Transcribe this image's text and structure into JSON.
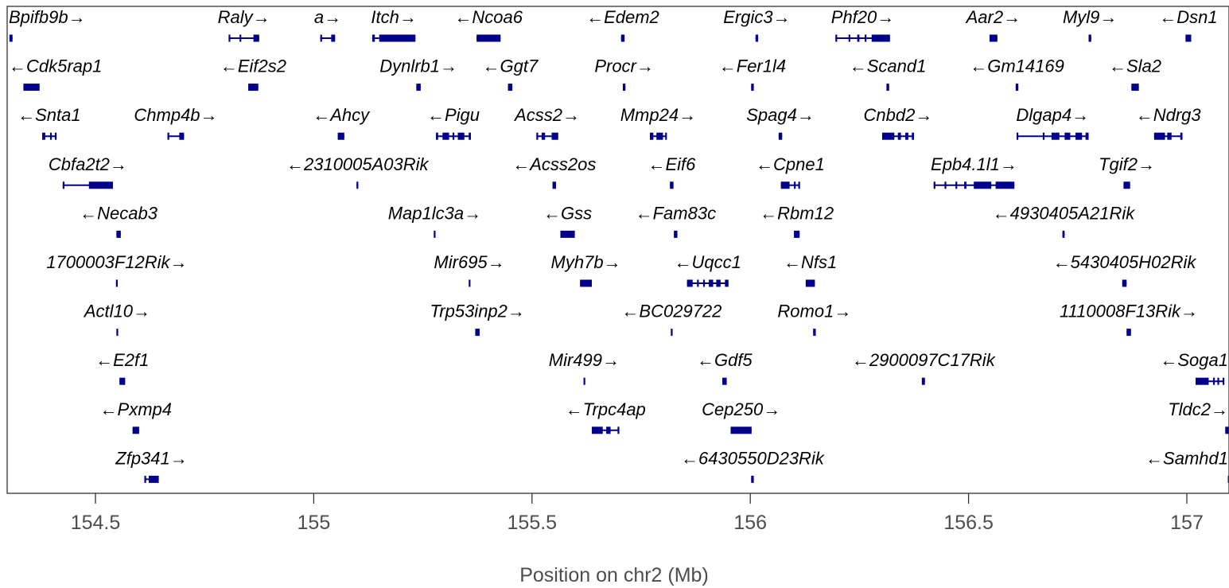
{
  "chart_data": {
    "type": "gene-track",
    "xlabel": "Position on chr2 (Mb)",
    "xlim": [
      154.3,
      157.1
    ],
    "xticks": [
      154.5,
      155,
      155.5,
      156,
      156.5,
      157
    ],
    "xtick_labels": [
      "154.5",
      "155",
      "155.5",
      "156",
      "156.5",
      "157"
    ],
    "gene_color": "#00008b",
    "genes": [
      {
        "name": "Bpifb9b",
        "strand": "+",
        "row": 0,
        "start": 154.303,
        "end": 154.31,
        "exons": [
          [
            154.303,
            154.31
          ]
        ]
      },
      {
        "name": "Raly",
        "strand": "+",
        "row": 0,
        "start": 154.805,
        "end": 154.875,
        "exons": [
          [
            154.805,
            154.808
          ],
          [
            154.83,
            154.833
          ],
          [
            154.862,
            154.875
          ]
        ]
      },
      {
        "name": "a",
        "strand": "+",
        "row": 0,
        "start": 155.015,
        "end": 155.049,
        "exons": [
          [
            155.015,
            155.018
          ],
          [
            155.04,
            155.049
          ]
        ]
      },
      {
        "name": "Itch",
        "strand": "+",
        "row": 0,
        "start": 155.134,
        "end": 155.233,
        "exons": [
          [
            155.134,
            155.14
          ],
          [
            155.15,
            155.233
          ]
        ]
      },
      {
        "name": "Ncoa6",
        "strand": "-",
        "row": 0,
        "start": 155.373,
        "end": 155.428,
        "exons": [
          [
            155.373,
            155.428
          ]
        ]
      },
      {
        "name": "Edem2",
        "strand": "-",
        "row": 0,
        "start": 155.704,
        "end": 155.712,
        "exons": [
          [
            155.704,
            155.712
          ]
        ]
      },
      {
        "name": "Ergic3",
        "strand": "+",
        "row": 0,
        "start": 156.012,
        "end": 156.018,
        "exons": [
          [
            156.012,
            156.018
          ]
        ]
      },
      {
        "name": "Phf20",
        "strand": "+",
        "row": 0,
        "start": 156.195,
        "end": 156.32,
        "exons": [
          [
            156.195,
            156.198
          ],
          [
            156.225,
            156.228
          ],
          [
            156.245,
            156.25
          ],
          [
            156.262,
            156.265
          ],
          [
            156.278,
            156.32
          ]
        ]
      },
      {
        "name": "Aar2",
        "strand": "+",
        "row": 0,
        "start": 156.548,
        "end": 156.566,
        "exons": [
          [
            156.548,
            156.566
          ]
        ]
      },
      {
        "name": "Myl9",
        "strand": "+",
        "row": 0,
        "start": 156.775,
        "end": 156.781,
        "exons": [
          [
            156.775,
            156.781
          ]
        ]
      },
      {
        "name": "Dsn1",
        "strand": "-",
        "row": 0,
        "start": 156.997,
        "end": 157.01,
        "exons": [
          [
            156.997,
            157.01
          ]
        ]
      },
      {
        "name": "Cdk5rap1",
        "strand": "-",
        "row": 1,
        "start": 154.335,
        "end": 154.372,
        "exons": [
          [
            154.335,
            154.372
          ]
        ]
      },
      {
        "name": "Eif2s2",
        "strand": "-",
        "row": 1,
        "start": 154.85,
        "end": 154.873,
        "exons": [
          [
            154.85,
            154.873
          ]
        ]
      },
      {
        "name": "Dynlrb1",
        "strand": "+",
        "row": 1,
        "start": 155.235,
        "end": 155.245,
        "exons": [
          [
            155.235,
            155.245
          ]
        ]
      },
      {
        "name": "Ggt7",
        "strand": "-",
        "row": 1,
        "start": 155.445,
        "end": 155.455,
        "exons": [
          [
            155.445,
            155.455
          ]
        ]
      },
      {
        "name": "Procr",
        "strand": "+",
        "row": 1,
        "start": 155.708,
        "end": 155.714,
        "exons": [
          [
            155.708,
            155.714
          ]
        ]
      },
      {
        "name": "Fer1l4",
        "strand": "-",
        "row": 1,
        "start": 156.002,
        "end": 156.008,
        "exons": [
          [
            156.002,
            156.008
          ]
        ]
      },
      {
        "name": "Scand1",
        "strand": "-",
        "row": 1,
        "start": 156.312,
        "end": 156.318,
        "exons": [
          [
            156.312,
            156.318
          ]
        ]
      },
      {
        "name": "Gm14169",
        "strand": "-",
        "row": 1,
        "start": 156.608,
        "end": 156.614,
        "exons": [
          [
            156.608,
            156.614
          ]
        ]
      },
      {
        "name": "Sla2",
        "strand": "-",
        "row": 1,
        "start": 156.873,
        "end": 156.89,
        "exons": [
          [
            156.873,
            156.89
          ]
        ]
      },
      {
        "name": "Snta1",
        "strand": "-",
        "row": 2,
        "start": 154.378,
        "end": 154.41,
        "exons": [
          [
            154.378,
            154.385
          ],
          [
            154.396,
            154.399
          ],
          [
            154.407,
            154.41
          ]
        ]
      },
      {
        "name": "Chmp4b",
        "strand": "+",
        "row": 2,
        "start": 154.665,
        "end": 154.703,
        "exons": [
          [
            154.665,
            154.668
          ],
          [
            154.692,
            154.703
          ]
        ]
      },
      {
        "name": "Ahcy",
        "strand": "-",
        "row": 2,
        "start": 155.055,
        "end": 155.07,
        "exons": [
          [
            155.055,
            155.07
          ]
        ]
      },
      {
        "name": "Pigu",
        "strand": "-",
        "row": 2,
        "start": 155.28,
        "end": 155.36,
        "exons": [
          [
            155.28,
            155.285
          ],
          [
            155.295,
            155.31
          ],
          [
            155.318,
            155.322
          ],
          [
            155.33,
            155.345
          ],
          [
            155.355,
            155.36
          ]
        ]
      },
      {
        "name": "Acss2",
        "strand": "+",
        "row": 2,
        "start": 155.51,
        "end": 155.56,
        "exons": [
          [
            155.51,
            155.514
          ],
          [
            155.522,
            155.53
          ],
          [
            155.545,
            155.56
          ]
        ]
      },
      {
        "name": "Mmp24",
        "strand": "+",
        "row": 2,
        "start": 155.77,
        "end": 155.808,
        "exons": [
          [
            155.77,
            155.778
          ],
          [
            155.785,
            155.8
          ],
          [
            155.805,
            155.808
          ]
        ]
      },
      {
        "name": "Spag4",
        "strand": "+",
        "row": 2,
        "start": 156.065,
        "end": 156.073,
        "exons": [
          [
            156.065,
            156.073
          ]
        ]
      },
      {
        "name": "Cnbd2",
        "strand": "+",
        "row": 2,
        "start": 156.302,
        "end": 156.375,
        "exons": [
          [
            156.302,
            156.33
          ],
          [
            156.338,
            156.345
          ],
          [
            156.355,
            156.362
          ],
          [
            156.37,
            156.375
          ]
        ]
      },
      {
        "name": "Dlgap4",
        "strand": "+",
        "row": 2,
        "start": 156.61,
        "end": 156.775,
        "exons": [
          [
            156.61,
            156.613
          ],
          [
            156.67,
            156.673
          ],
          [
            156.69,
            156.708
          ],
          [
            156.72,
            156.733
          ],
          [
            156.745,
            156.76
          ],
          [
            156.768,
            156.775
          ]
        ]
      },
      {
        "name": "Ndrg3",
        "strand": "-",
        "row": 2,
        "start": 156.925,
        "end": 156.99,
        "exons": [
          [
            156.925,
            156.95
          ],
          [
            156.955,
            156.965
          ],
          [
            156.985,
            156.99
          ]
        ]
      },
      {
        "name": "Cbfa2t2",
        "strand": "+",
        "row": 3,
        "start": 154.425,
        "end": 154.54,
        "exons": [
          [
            154.425,
            154.428
          ],
          [
            154.485,
            154.54
          ]
        ]
      },
      {
        "name": "2310005A03Rik",
        "strand": "-",
        "row": 3,
        "start": 155.098,
        "end": 155.102,
        "exons": [
          [
            155.098,
            155.102
          ]
        ]
      },
      {
        "name": "Acss2os",
        "strand": "-",
        "row": 3,
        "start": 155.547,
        "end": 155.555,
        "exons": [
          [
            155.547,
            155.555
          ]
        ]
      },
      {
        "name": "Eif6",
        "strand": "-",
        "row": 3,
        "start": 155.816,
        "end": 155.824,
        "exons": [
          [
            155.816,
            155.824
          ]
        ]
      },
      {
        "name": "Cpne1",
        "strand": "-",
        "row": 3,
        "start": 156.07,
        "end": 156.113,
        "exons": [
          [
            156.07,
            156.09
          ],
          [
            156.1,
            156.103
          ],
          [
            156.11,
            156.113
          ]
        ]
      },
      {
        "name": "Epb4.1l1",
        "strand": "+",
        "row": 3,
        "start": 156.42,
        "end": 156.605,
        "exons": [
          [
            156.42,
            156.423
          ],
          [
            156.445,
            156.448
          ],
          [
            156.47,
            156.473
          ],
          [
            156.49,
            156.495
          ],
          [
            156.512,
            156.552
          ],
          [
            156.562,
            156.605
          ]
        ]
      },
      {
        "name": "Tgif2",
        "strand": "+",
        "row": 3,
        "start": 156.855,
        "end": 156.87,
        "exons": [
          [
            156.855,
            156.87
          ]
        ]
      },
      {
        "name": "Necab3",
        "strand": "-",
        "row": 4,
        "start": 154.548,
        "end": 154.558,
        "exons": [
          [
            154.548,
            154.558
          ]
        ]
      },
      {
        "name": "Map1lc3a",
        "strand": "+",
        "row": 4,
        "start": 155.275,
        "end": 155.279,
        "exons": [
          [
            155.275,
            155.279
          ]
        ]
      },
      {
        "name": "Gss",
        "strand": "-",
        "row": 4,
        "start": 155.565,
        "end": 155.598,
        "exons": [
          [
            155.565,
            155.598
          ]
        ]
      },
      {
        "name": "Fam83c",
        "strand": "-",
        "row": 4,
        "start": 155.825,
        "end": 155.833,
        "exons": [
          [
            155.825,
            155.833
          ]
        ]
      },
      {
        "name": "Rbm12",
        "strand": "-",
        "row": 4,
        "start": 156.1,
        "end": 156.113,
        "exons": [
          [
            156.1,
            156.113
          ]
        ]
      },
      {
        "name": "4930405A21Rik",
        "strand": "-",
        "row": 4,
        "start": 156.715,
        "end": 156.72,
        "exons": [
          [
            156.715,
            156.72
          ]
        ]
      },
      {
        "name": "1700003F12Rik",
        "strand": "+",
        "row": 5,
        "start": 154.547,
        "end": 154.551,
        "exons": [
          [
            154.547,
            154.551
          ]
        ]
      },
      {
        "name": "Mir695",
        "strand": "+",
        "row": 5,
        "start": 155.355,
        "end": 155.358,
        "exons": [
          [
            155.355,
            155.358
          ]
        ]
      },
      {
        "name": "Myh7b",
        "strand": "+",
        "row": 5,
        "start": 155.61,
        "end": 155.637,
        "exons": [
          [
            155.61,
            155.637
          ]
        ]
      },
      {
        "name": "Uqcc1",
        "strand": "-",
        "row": 5,
        "start": 155.855,
        "end": 155.95,
        "exons": [
          [
            155.855,
            155.868
          ],
          [
            155.878,
            155.881
          ],
          [
            155.892,
            155.895
          ],
          [
            155.905,
            155.915
          ],
          [
            155.922,
            155.932
          ],
          [
            155.942,
            155.95
          ]
        ]
      },
      {
        "name": "Nfs1",
        "strand": "-",
        "row": 5,
        "start": 156.127,
        "end": 156.148,
        "exons": [
          [
            156.127,
            156.148
          ]
        ]
      },
      {
        "name": "5430405H02Rik",
        "strand": "-",
        "row": 5,
        "start": 156.852,
        "end": 156.862,
        "exons": [
          [
            156.852,
            156.862
          ]
        ]
      },
      {
        "name": "Actl10",
        "strand": "+",
        "row": 6,
        "start": 154.548,
        "end": 154.552,
        "exons": [
          [
            154.548,
            154.552
          ]
        ]
      },
      {
        "name": "Trp53inp2",
        "strand": "+",
        "row": 6,
        "start": 155.37,
        "end": 155.38,
        "exons": [
          [
            155.37,
            155.38
          ]
        ]
      },
      {
        "name": "BC029722",
        "strand": "-",
        "row": 6,
        "start": 155.818,
        "end": 155.822,
        "exons": [
          [
            155.818,
            155.822
          ]
        ]
      },
      {
        "name": "Romo1",
        "strand": "+",
        "row": 6,
        "start": 156.144,
        "end": 156.15,
        "exons": [
          [
            156.144,
            156.15
          ]
        ]
      },
      {
        "name": "1110008F13Rik",
        "strand": "+",
        "row": 6,
        "start": 156.862,
        "end": 156.872,
        "exons": [
          [
            156.862,
            156.872
          ]
        ]
      },
      {
        "name": "E2f1",
        "strand": "-",
        "row": 7,
        "start": 154.555,
        "end": 154.568,
        "exons": [
          [
            154.555,
            154.568
          ]
        ]
      },
      {
        "name": "Mir499",
        "strand": "+",
        "row": 7,
        "start": 155.618,
        "end": 155.621,
        "exons": [
          [
            155.618,
            155.621
          ]
        ]
      },
      {
        "name": "Gdf5",
        "strand": "-",
        "row": 7,
        "start": 155.936,
        "end": 155.946,
        "exons": [
          [
            155.936,
            155.946
          ]
        ]
      },
      {
        "name": "2900097C17Rik",
        "strand": "-",
        "row": 7,
        "start": 156.393,
        "end": 156.4,
        "exons": [
          [
            156.393,
            156.4
          ]
        ]
      },
      {
        "name": "Soga1",
        "strand": "-",
        "row": 7,
        "start": 157.02,
        "end": 157.085,
        "exons": [
          [
            157.02,
            157.05
          ],
          [
            157.06,
            157.063
          ],
          [
            157.07,
            157.073
          ],
          [
            157.082,
            157.085
          ]
        ]
      },
      {
        "name": "Pxmp4",
        "strand": "-",
        "row": 8,
        "start": 154.585,
        "end": 154.6,
        "exons": [
          [
            154.585,
            154.6
          ]
        ]
      },
      {
        "name": "Trpc4ap",
        "strand": "-",
        "row": 8,
        "start": 155.637,
        "end": 155.7,
        "exons": [
          [
            155.637,
            155.662
          ],
          [
            155.67,
            155.68
          ],
          [
            155.696,
            155.7
          ]
        ]
      },
      {
        "name": "Cep250",
        "strand": "+",
        "row": 8,
        "start": 155.955,
        "end": 156.003,
        "exons": [
          [
            155.955,
            156.003
          ]
        ]
      },
      {
        "name": "Tldc2",
        "strand": "+",
        "row": 8,
        "start": 157.088,
        "end": 157.1,
        "exons": [
          [
            157.088,
            157.1
          ]
        ]
      },
      {
        "name": "Zfp341",
        "strand": "+",
        "row": 9,
        "start": 154.612,
        "end": 154.645,
        "exons": [
          [
            154.612,
            154.615
          ],
          [
            154.622,
            154.645
          ]
        ]
      },
      {
        "name": "6430550D23Rik",
        "strand": "-",
        "row": 9,
        "start": 156.002,
        "end": 156.008,
        "exons": [
          [
            156.002,
            156.008
          ]
        ]
      },
      {
        "name": "Samhd1",
        "strand": "-",
        "row": 9,
        "start": 157.094,
        "end": 157.1,
        "exons": [
          [
            157.094,
            157.1
          ]
        ]
      }
    ]
  }
}
